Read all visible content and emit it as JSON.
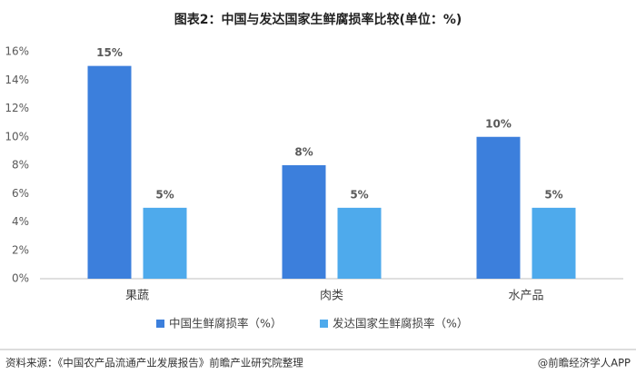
{
  "chart_data": {
    "type": "bar",
    "title": "图表2：中国与发达国家生鲜腐损率比较(单位：%)",
    "categories": [
      "果蔬",
      "肉类",
      "水产品"
    ],
    "series": [
      {
        "name": "中国生鲜腐损率（%）",
        "color": "#3c7fdc",
        "values": [
          15,
          8,
          10
        ],
        "value_labels": [
          "15%",
          "8%",
          "10%"
        ]
      },
      {
        "name": "发达国家生鲜腐损率（%）",
        "color": "#4eaaec",
        "values": [
          5,
          5,
          5
        ],
        "value_labels": [
          "5%",
          "5%",
          "5%"
        ]
      }
    ],
    "ylim": [
      0,
      16
    ],
    "yticks": [
      {
        "value": 0,
        "label": "0%"
      },
      {
        "value": 2,
        "label": "2%"
      },
      {
        "value": 4,
        "label": "4%"
      },
      {
        "value": 6,
        "label": "6%"
      },
      {
        "value": 8,
        "label": "8%"
      },
      {
        "value": 10,
        "label": "10%"
      },
      {
        "value": 12,
        "label": "12%"
      },
      {
        "value": 14,
        "label": "14%"
      },
      {
        "value": 16,
        "label": "16%"
      }
    ],
    "grid": false,
    "legend": "bottom",
    "source": "资料来源：《中国农产品流通产业发展报告》前瞻产业研究院整理",
    "credit": "@前瞻经济学人APP"
  }
}
